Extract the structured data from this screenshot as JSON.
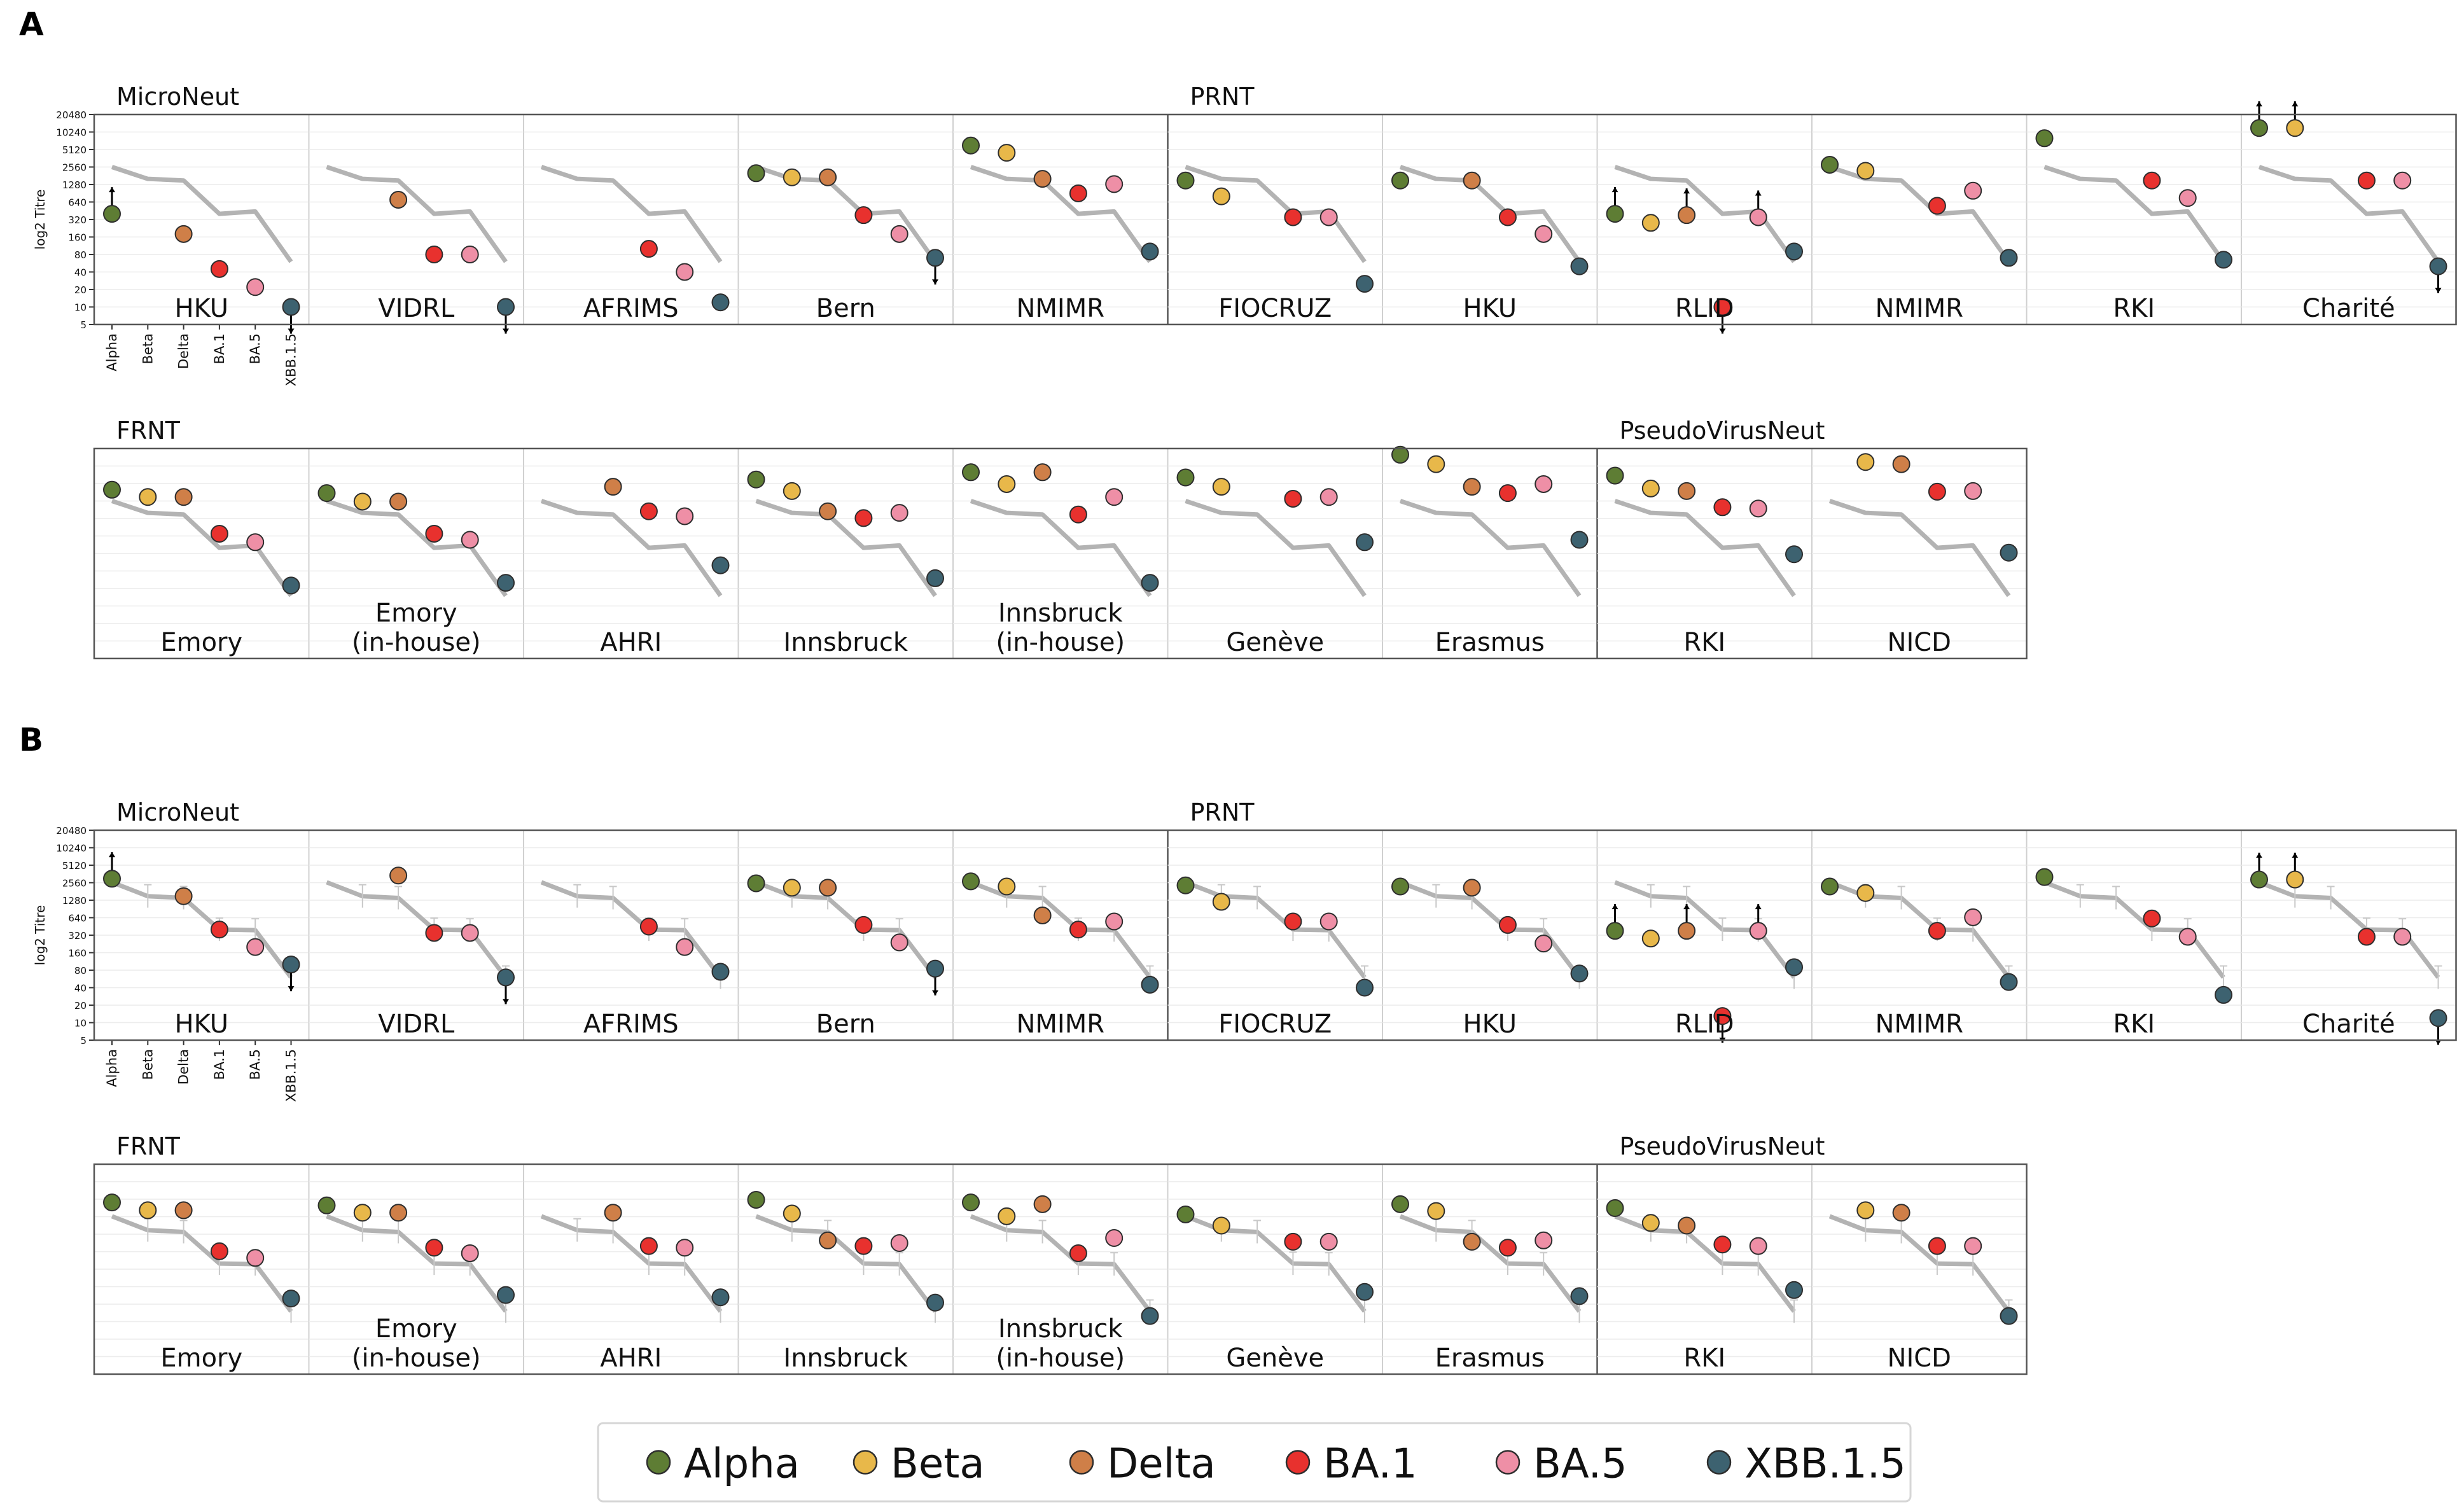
{
  "figure": {
    "panel_labels": [
      "A",
      "B"
    ],
    "legend": [
      {
        "name": "Alpha",
        "color": "#5e7d34"
      },
      {
        "name": "Beta",
        "color": "#e8b84a"
      },
      {
        "name": "Delta",
        "color": "#cf7f48"
      },
      {
        "name": "BA.1",
        "color": "#e8312e"
      },
      {
        "name": "BA.5",
        "color": "#ee8fa6"
      },
      {
        "name": "XBB.1.5",
        "color": "#3d6270"
      }
    ]
  },
  "chart_data": {
    "type": "scatter",
    "title": "",
    "xlabel": "",
    "ylabel": "log2 Titre",
    "y_scale": "log2",
    "ylim": [
      5,
      20480
    ],
    "yticks": [
      5,
      10,
      20,
      40,
      80,
      160,
      320,
      640,
      1280,
      2560,
      5120,
      10240,
      20480
    ],
    "categories": [
      "Alpha",
      "Beta",
      "Delta",
      "BA.1",
      "BA.5",
      "XBB.1.5"
    ],
    "mean_line": {
      "A": [
        2560,
        1600,
        1500,
        400,
        440,
        60
      ],
      "B": [
        2600,
        1500,
        1400,
        400,
        390,
        60
      ]
    },
    "panels": [
      {
        "label": "A",
        "rows": [
          {
            "headers": [
              {
                "text": "MicroNeut",
                "at": 0
              },
              {
                "text": "PRNT",
                "at": 5
              }
            ],
            "assay_boundaries": [
              5
            ],
            "subplots": [
              {
                "lab": "HKU",
                "values": [
                  400,
                  null,
                  180,
                  45,
                  22,
                  10
                ],
                "arrows": [
                  {
                    "i": 0,
                    "dir": "up"
                  },
                  {
                    "i": 5,
                    "dir": "down"
                  }
                ]
              },
              {
                "lab": "VIDRL",
                "values": [
                  null,
                  null,
                  700,
                  80,
                  80,
                  10
                ],
                "arrows": [
                  {
                    "i": 5,
                    "dir": "down"
                  }
                ]
              },
              {
                "lab": "AFRIMS",
                "values": [
                  null,
                  null,
                  null,
                  100,
                  40,
                  12
                ],
                "arrows": []
              },
              {
                "lab": "Bern",
                "values": [
                  2000,
                  1700,
                  1700,
                  380,
                  180,
                  70
                ],
                "arrows": [
                  {
                    "i": 5,
                    "dir": "down"
                  }
                ]
              },
              {
                "lab": "NMIMR",
                "values": [
                  6000,
                  4500,
                  1600,
                  900,
                  1300,
                  90
                ],
                "arrows": []
              },
              {
                "lab": "FIOCRUZ",
                "values": [
                  1500,
                  800,
                  null,
                  350,
                  350,
                  25
                ],
                "arrows": []
              },
              {
                "lab": "HKU",
                "values": [
                  1500,
                  null,
                  1500,
                  350,
                  180,
                  50
                ],
                "arrows": []
              },
              {
                "lab": "RLID",
                "values": [
                  400,
                  280,
                  380,
                  10,
                  350,
                  90
                ],
                "arrows": [
                  {
                    "i": 0,
                    "dir": "up"
                  },
                  {
                    "i": 2,
                    "dir": "up"
                  },
                  {
                    "i": 3,
                    "dir": "down"
                  },
                  {
                    "i": 4,
                    "dir": "up"
                  }
                ]
              },
              {
                "lab": "NMIMR",
                "values": [
                  2800,
                  2200,
                  null,
                  550,
                  1000,
                  70
                ],
                "arrows": []
              },
              {
                "lab": "RKI",
                "values": [
                  8000,
                  null,
                  null,
                  1500,
                  750,
                  65
                ],
                "arrows": []
              },
              {
                "lab": "Charité",
                "values": [
                  12000,
                  12000,
                  null,
                  1500,
                  1500,
                  50
                ],
                "arrows": [
                  {
                    "i": 0,
                    "dir": "up"
                  },
                  {
                    "i": 1,
                    "dir": "up"
                  },
                  {
                    "i": 5,
                    "dir": "down"
                  }
                ]
              }
            ]
          },
          {
            "headers": [
              {
                "text": "FRNT",
                "at": 0
              },
              {
                "text": "PseudoVirusNeut",
                "at": 7
              }
            ],
            "assay_boundaries": [
              7
            ],
            "subplots": [
              {
                "lab": "Emory",
                "values": [
                  4000,
                  3000,
                  3000,
                  700,
                  500,
                  90
                ],
                "arrows": []
              },
              {
                "lab": "Emory\n(in-house)",
                "values": [
                  3500,
                  2500,
                  2500,
                  700,
                  550,
                  100
                ],
                "arrows": []
              },
              {
                "lab": "AHRI",
                "values": [
                  null,
                  null,
                  4500,
                  1700,
                  1400,
                  200
                ],
                "arrows": []
              },
              {
                "lab": "Innsbruck",
                "values": [
                  6000,
                  3800,
                  1700,
                  1300,
                  1600,
                  120
                ],
                "arrows": []
              },
              {
                "lab": "Innsbruck\n(in-house)",
                "values": [
                  8000,
                  5000,
                  8000,
                  1500,
                  3000,
                  100
                ],
                "arrows": []
              },
              {
                "lab": "Genève",
                "values": [
                  6500,
                  4500,
                  null,
                  2800,
                  3000,
                  500
                ],
                "arrows": []
              },
              {
                "lab": "Erasmus",
                "values": [
                  16000,
                  11000,
                  4500,
                  3500,
                  5000,
                  550
                ],
                "arrows": []
              },
              {
                "lab": "RKI",
                "values": [
                  7000,
                  4200,
                  3800,
                  2000,
                  1900,
                  310
                ],
                "arrows": []
              },
              {
                "lab": "NICD",
                "values": [
                  null,
                  12000,
                  11000,
                  3700,
                  3800,
                  330
                ],
                "arrows": []
              }
            ]
          }
        ]
      },
      {
        "label": "B",
        "rows": [
          {
            "headers": [
              {
                "text": "MicroNeut",
                "at": 0
              },
              {
                "text": "PRNT",
                "at": 5
              }
            ],
            "assay_boundaries": [
              5
            ],
            "subplots": [
              {
                "lab": "HKU",
                "values": [
                  3000,
                  null,
                  1500,
                  400,
                  200,
                  100
                ],
                "arrows": [
                  {
                    "i": 0,
                    "dir": "up"
                  },
                  {
                    "i": 5,
                    "dir": "down"
                  }
                ]
              },
              {
                "lab": "VIDRL",
                "values": [
                  null,
                  null,
                  3400,
                  350,
                  350,
                  60
                ],
                "arrows": [
                  {
                    "i": 5,
                    "dir": "down"
                  }
                ]
              },
              {
                "lab": "AFRIMS",
                "values": [
                  null,
                  null,
                  null,
                  450,
                  200,
                  75
                ],
                "arrows": []
              },
              {
                "lab": "Bern",
                "values": [
                  2500,
                  2100,
                  2100,
                  480,
                  240,
                  85
                ],
                "arrows": [
                  {
                    "i": 5,
                    "dir": "down"
                  }
                ]
              },
              {
                "lab": "NMIMR",
                "values": [
                  2700,
                  2200,
                  700,
                  400,
                  550,
                  45
                ],
                "arrows": []
              },
              {
                "lab": "FIOCRUZ",
                "values": [
                  2300,
                  1200,
                  null,
                  550,
                  550,
                  40
                ],
                "arrows": []
              },
              {
                "lab": "HKU",
                "values": [
                  2200,
                  null,
                  2100,
                  480,
                  230,
                  70
                ],
                "arrows": []
              },
              {
                "lab": "RLID",
                "values": [
                  380,
                  280,
                  380,
                  13,
                  380,
                  90
                ],
                "arrows": [
                  {
                    "i": 0,
                    "dir": "up"
                  },
                  {
                    "i": 2,
                    "dir": "up"
                  },
                  {
                    "i": 3,
                    "dir": "down"
                  },
                  {
                    "i": 4,
                    "dir": "up"
                  }
                ]
              },
              {
                "lab": "NMIMR",
                "values": [
                  2200,
                  1700,
                  null,
                  380,
                  650,
                  50
                ],
                "arrows": []
              },
              {
                "lab": "RKI",
                "values": [
                  3200,
                  null,
                  null,
                  620,
                  300,
                  30
                ],
                "arrows": []
              },
              {
                "lab": "Charité",
                "values": [
                  2900,
                  2900,
                  null,
                  300,
                  300,
                  12
                ],
                "arrows": [
                  {
                    "i": 0,
                    "dir": "up"
                  },
                  {
                    "i": 1,
                    "dir": "up"
                  },
                  {
                    "i": 5,
                    "dir": "down"
                  }
                ]
              }
            ]
          },
          {
            "headers": [
              {
                "text": "FRNT",
                "at": 0
              },
              {
                "text": "PseudoVirusNeut",
                "at": 7
              }
            ],
            "assay_boundaries": [
              7
            ],
            "subplots": [
              {
                "lab": "Emory",
                "values": [
                  4500,
                  3300,
                  3300,
                  650,
                  500,
                  100
                ],
                "arrows": []
              },
              {
                "lab": "Emory\n(in-house)",
                "values": [
                  4000,
                  3000,
                  3000,
                  750,
                  600,
                  115
                ],
                "arrows": []
              },
              {
                "lab": "AHRI",
                "values": [
                  null,
                  null,
                  3000,
                  800,
                  750,
                  105
                ],
                "arrows": []
              },
              {
                "lab": "Innsbruck",
                "values": [
                  5000,
                  2900,
                  1000,
                  800,
                  900,
                  85
                ],
                "arrows": []
              },
              {
                "lab": "Innsbruck\n(in-house)",
                "values": [
                  4500,
                  2600,
                  4200,
                  600,
                  1100,
                  50
                ],
                "arrows": []
              },
              {
                "lab": "Genève",
                "values": [
                  2800,
                  1800,
                  null,
                  950,
                  950,
                  130
                ],
                "arrows": []
              },
              {
                "lab": "Erasmus",
                "values": [
                  4200,
                  3200,
                  950,
                  750,
                  1000,
                  110
                ],
                "arrows": []
              },
              {
                "lab": "RKI",
                "values": [
                  3600,
                  2000,
                  1800,
                  850,
                  800,
                  140
                ],
                "arrows": []
              },
              {
                "lab": "NICD",
                "values": [
                  null,
                  3300,
                  3000,
                  800,
                  800,
                  50
                ],
                "arrows": []
              }
            ]
          }
        ]
      }
    ]
  }
}
